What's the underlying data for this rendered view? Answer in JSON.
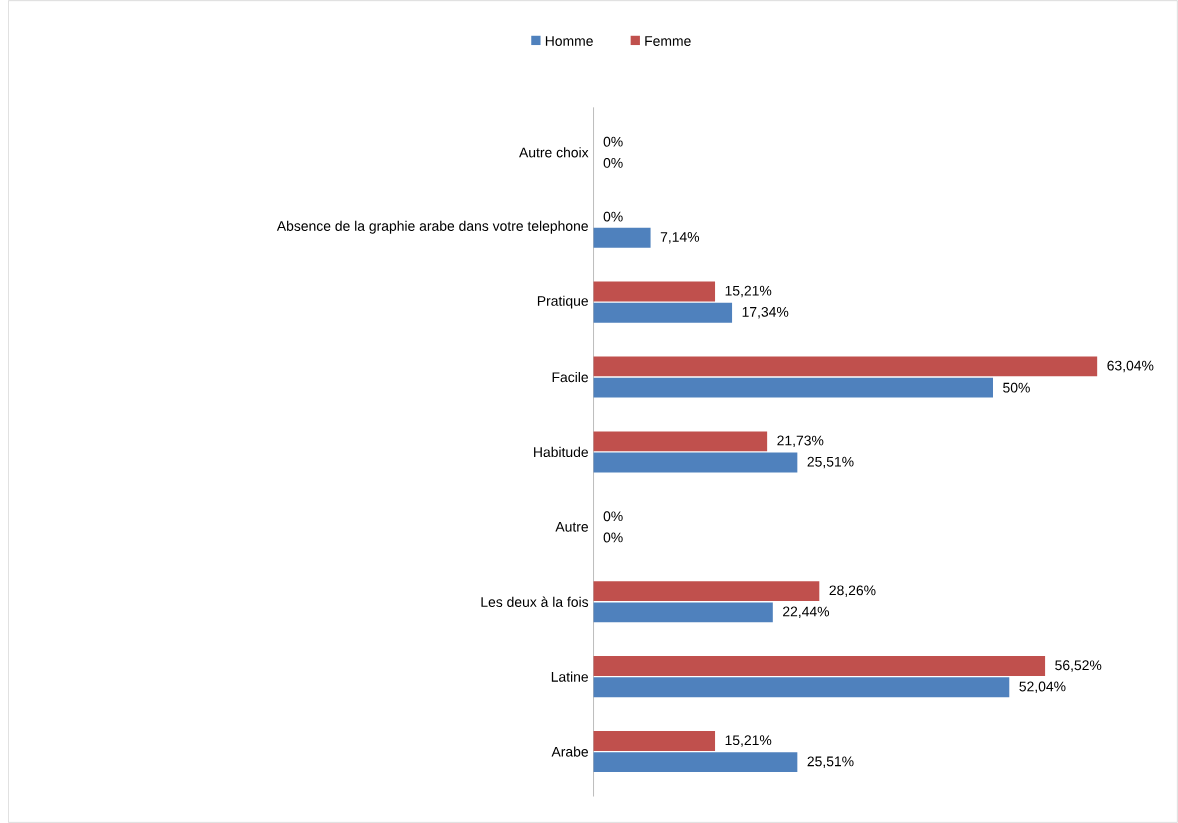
{
  "chart_data": {
    "type": "bar",
    "orientation": "horizontal",
    "categories": [
      "Autre choix",
      "Absence de la graphie arabe dans votre telephone",
      "Pratique",
      "Facile",
      "Habitude",
      "Autre",
      "Les deux à la fois",
      "Latine",
      "Arabe"
    ],
    "series": [
      {
        "name": "Homme",
        "color": "#4f81bd",
        "values": [
          0,
          7.14,
          17.34,
          50,
          25.51,
          0,
          22.44,
          52.04,
          25.51
        ],
        "value_labels": [
          "0%",
          "7,14%",
          "17,34%",
          "50%",
          "25,51%",
          "0%",
          "22,44%",
          "52,04%",
          "25,51%"
        ]
      },
      {
        "name": "Femme",
        "color": "#c0504d",
        "values": [
          0,
          0,
          15.21,
          63.04,
          21.73,
          0,
          28.26,
          56.52,
          15.21
        ],
        "value_labels": [
          "0%",
          "0%",
          "15,21%",
          "63,04%",
          "21,73%",
          "0%",
          "28,26%",
          "56,52%",
          "15,21%"
        ]
      }
    ],
    "tick_labels": "y",
    "legend": "top"
  }
}
